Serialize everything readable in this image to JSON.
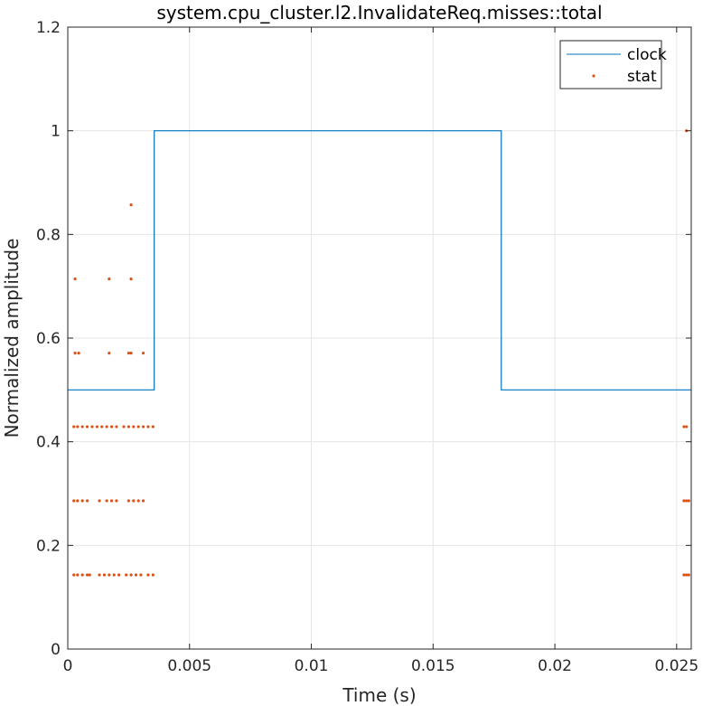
{
  "chart_data": {
    "type": "line",
    "title": "system.cpu_cluster.l2.InvalidateReq.misses::total",
    "xlabel": "Time (s)",
    "ylabel": "Normalized amplitude",
    "xlim": [
      0,
      0.0256
    ],
    "ylim": [
      0,
      1.2
    ],
    "xticks": [
      0,
      0.005,
      0.01,
      0.015,
      0.02,
      0.025
    ],
    "xtick_labels": [
      "0",
      "0.005",
      "0.01",
      "0.015",
      "0.02",
      "0.025"
    ],
    "yticks": [
      0,
      0.2,
      0.4,
      0.6,
      0.8,
      1,
      1.2
    ],
    "ytick_labels": [
      "0",
      "0.2",
      "0.4",
      "0.6",
      "0.8",
      "1",
      "1.2"
    ],
    "grid": true,
    "legend_position": "top-right",
    "colors": {
      "clock": "#0072BD",
      "stat": "#D95319",
      "grid": "#e5e5e5",
      "axis": "#262626"
    },
    "series": [
      {
        "name": "clock",
        "kind": "step-line",
        "x": [
          0,
          0.00355,
          0.00355,
          0.0178,
          0.0178,
          0.0256
        ],
        "y": [
          0.5,
          0.5,
          1.0,
          1.0,
          0.5,
          0.5
        ]
      },
      {
        "name": "stat",
        "kind": "markers",
        "points": [
          [
            0.00025,
            0.143
          ],
          [
            0.0004,
            0.143
          ],
          [
            0.0006,
            0.143
          ],
          [
            0.0008,
            0.143
          ],
          [
            0.0009,
            0.143
          ],
          [
            0.0013,
            0.143
          ],
          [
            0.0015,
            0.143
          ],
          [
            0.0017,
            0.143
          ],
          [
            0.0019,
            0.143
          ],
          [
            0.0021,
            0.143
          ],
          [
            0.0024,
            0.143
          ],
          [
            0.0026,
            0.143
          ],
          [
            0.0028,
            0.143
          ],
          [
            0.003,
            0.143
          ],
          [
            0.0033,
            0.143
          ],
          [
            0.0035,
            0.143
          ],
          [
            0.00025,
            0.286
          ],
          [
            0.0004,
            0.286
          ],
          [
            0.0006,
            0.286
          ],
          [
            0.0008,
            0.286
          ],
          [
            0.0013,
            0.286
          ],
          [
            0.0016,
            0.286
          ],
          [
            0.0018,
            0.286
          ],
          [
            0.002,
            0.286
          ],
          [
            0.0025,
            0.286
          ],
          [
            0.0027,
            0.286
          ],
          [
            0.0029,
            0.286
          ],
          [
            0.0031,
            0.286
          ],
          [
            0.00025,
            0.429
          ],
          [
            0.0004,
            0.429
          ],
          [
            0.0006,
            0.429
          ],
          [
            0.0008,
            0.429
          ],
          [
            0.001,
            0.429
          ],
          [
            0.0012,
            0.429
          ],
          [
            0.0014,
            0.429
          ],
          [
            0.0016,
            0.429
          ],
          [
            0.0018,
            0.429
          ],
          [
            0.002,
            0.429
          ],
          [
            0.0023,
            0.429
          ],
          [
            0.0025,
            0.429
          ],
          [
            0.0027,
            0.429
          ],
          [
            0.0029,
            0.429
          ],
          [
            0.0031,
            0.429
          ],
          [
            0.0033,
            0.429
          ],
          [
            0.0035,
            0.429
          ],
          [
            0.0003,
            0.571
          ],
          [
            0.00045,
            0.571
          ],
          [
            0.0017,
            0.571
          ],
          [
            0.0025,
            0.571
          ],
          [
            0.0026,
            0.571
          ],
          [
            0.0031,
            0.571
          ],
          [
            0.0003,
            0.714
          ],
          [
            0.0017,
            0.714
          ],
          [
            0.0026,
            0.714
          ],
          [
            0.0026,
            0.857
          ],
          [
            0.0253,
            0.143
          ],
          [
            0.0254,
            0.143
          ],
          [
            0.0255,
            0.143
          ],
          [
            0.0253,
            0.286
          ],
          [
            0.0254,
            0.286
          ],
          [
            0.0255,
            0.286
          ],
          [
            0.0253,
            0.429
          ],
          [
            0.0254,
            0.429
          ],
          [
            0.0254,
            1.0
          ]
        ]
      }
    ]
  }
}
